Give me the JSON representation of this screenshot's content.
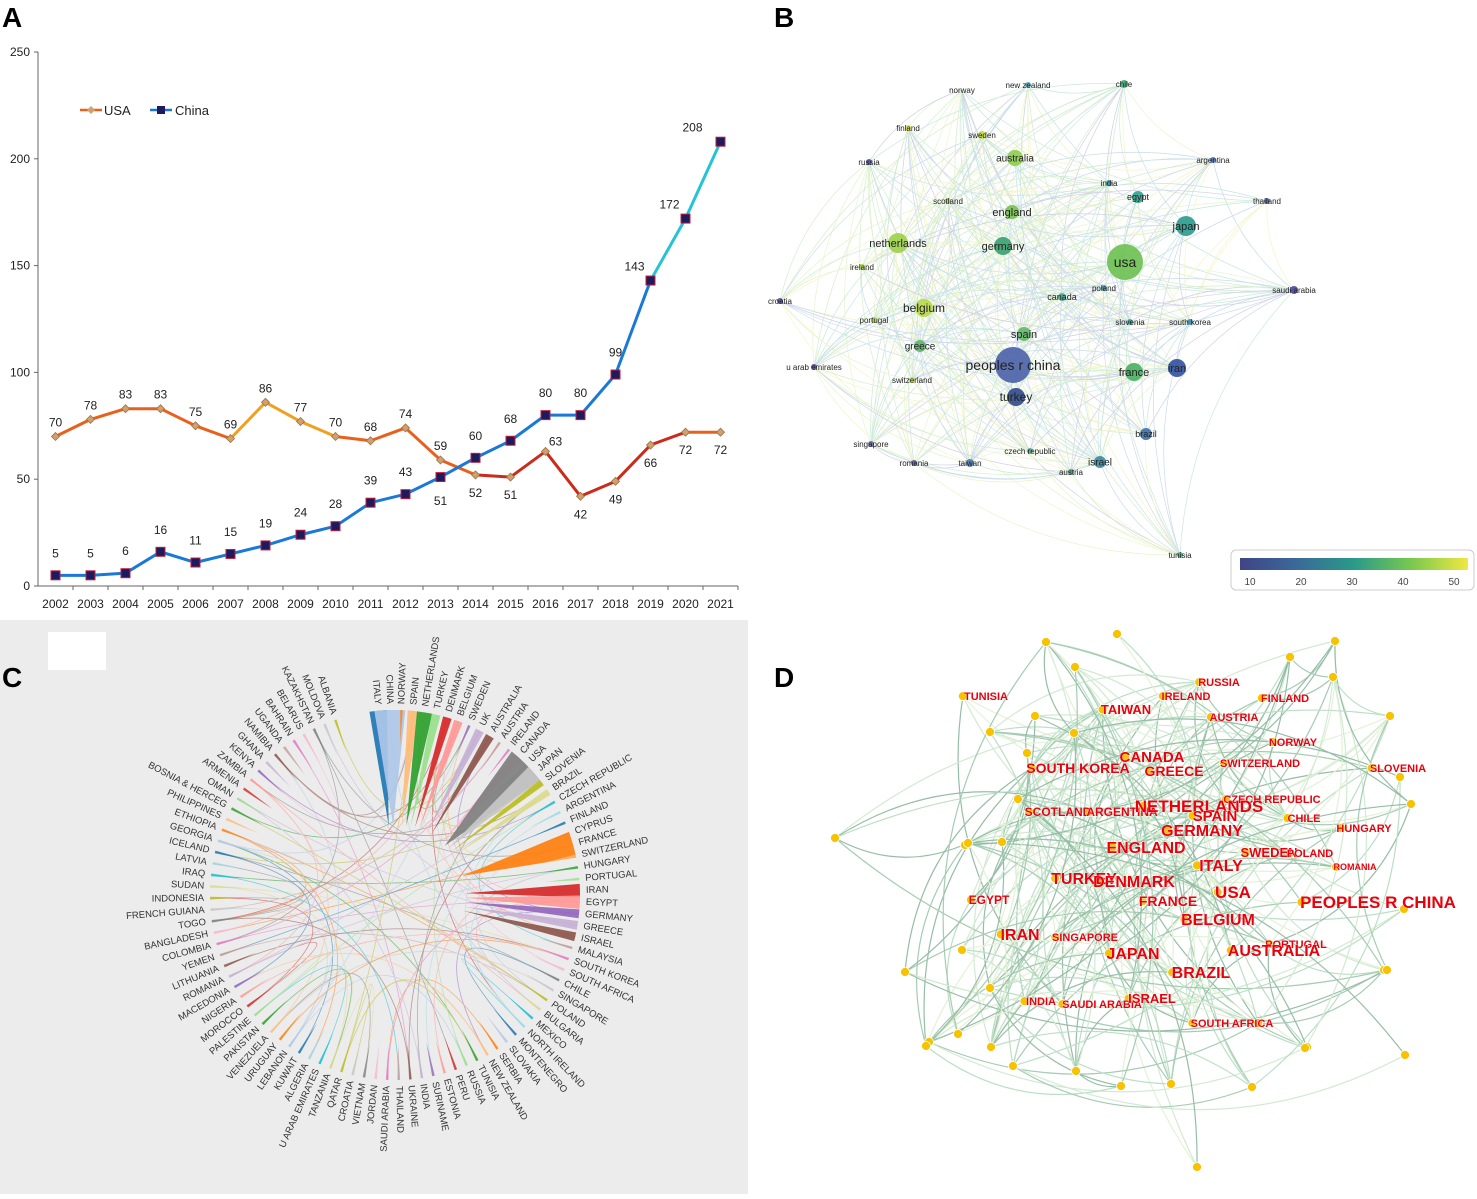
{
  "panels": {
    "a": "A",
    "b": "B",
    "c": "C",
    "d": "D"
  },
  "chart_data": [
    {
      "type": "line",
      "panel": "A",
      "title": "",
      "x": [
        2002,
        2003,
        2004,
        2005,
        2006,
        2007,
        2008,
        2009,
        2010,
        2011,
        2012,
        2013,
        2014,
        2015,
        2016,
        2017,
        2018,
        2019,
        2020,
        2021
      ],
      "series": [
        {
          "name": "USA",
          "values": [
            70,
            78,
            83,
            83,
            75,
            69,
            86,
            77,
            70,
            68,
            74,
            59,
            52,
            51,
            63,
            42,
            49,
            66,
            72,
            72
          ]
        },
        {
          "name": "China",
          "values": [
            5,
            5,
            6,
            16,
            11,
            15,
            19,
            24,
            28,
            39,
            43,
            51,
            60,
            68,
            80,
            80,
            99,
            143,
            172,
            208
          ]
        }
      ],
      "ylim": [
        0,
        250
      ],
      "yticks": [
        0,
        50,
        100,
        150,
        200,
        250
      ],
      "legend": "top-left"
    },
    {
      "type": "network",
      "panel": "B",
      "nodes": [
        "norway",
        "new zealand",
        "chile",
        "finland",
        "sweden",
        "australia",
        "russia",
        "argentina",
        "india",
        "egypt",
        "scotland",
        "thailand",
        "england",
        "japan",
        "netherlands",
        "germany",
        "usa",
        "ireland",
        "poland",
        "croatia",
        "canada",
        "saudi arabia",
        "belgium",
        "portugal",
        "slovenia",
        "south korea",
        "spain",
        "greece",
        "peoples r china",
        "u arab emirates",
        "france",
        "iran",
        "switzerland",
        "turkey",
        "brazil",
        "singapore",
        "czech republic",
        "romania",
        "taiwan",
        "israel",
        "austria",
        "tunisia"
      ],
      "colorbar": {
        "ticks": [
          "10",
          "20",
          "30",
          "40",
          "50"
        ]
      }
    },
    {
      "type": "chord",
      "panel": "C",
      "labels": [
        "ITALY",
        "CHINA",
        "NORWAY",
        "SPAIN",
        "NETHERLANDS",
        "TURKEY",
        "DENMARK",
        "BELGIUM",
        "SWEDEN",
        "UK",
        "AUSTRALIA",
        "AUSTRIA",
        "IRELAND",
        "CANADA",
        "USA",
        "JAPAN",
        "SLOVENIA",
        "BRAZIL",
        "CZECH REPUBLIC",
        "ARGENTINA",
        "FINLAND",
        "CYPRUS",
        "FRANCE",
        "SWITZERLAND",
        "HUNGARY",
        "PORTUGAL",
        "IRAN",
        "EGYPT",
        "GERMANY",
        "GREECE",
        "ISRAEL",
        "MALAYSIA",
        "SOUTH KOREA",
        "SOUTH AFRICA",
        "CHILE",
        "SINGAPORE",
        "POLAND",
        "BULGARIA",
        "MEXICO",
        "NORTH IRELAND",
        "MONTENEGRO",
        "SLOVAKIA",
        "SERBIA",
        "NEW ZEALAND",
        "TUNISIA",
        "RUSSIA",
        "PERU",
        "ESTONIA",
        "SURINAME",
        "INDIA",
        "UKRAINE",
        "THAILAND",
        "SAUDI ARABIA",
        "JORDAN",
        "VIETNAM",
        "CROATIA",
        "QATAR",
        "TANZANIA",
        "U ARAB EMIRATES",
        "ALGERIA",
        "KUWAIT",
        "LEBANON",
        "URUGUAY",
        "VENEZUELA",
        "PAKISTAN",
        "PALESTINE",
        "MOROCCO",
        "NIGERIA",
        "MACEDONIA",
        "ROMANIA",
        "LITHUANIA",
        "YEMEN",
        "COLOMBIA",
        "BANGLADESH",
        "TOGO",
        "FRENCH GUIANA",
        "INDONESIA",
        "SUDAN",
        "IRAQ",
        "LATVIA",
        "ICELAND",
        "GEORGIA",
        "ETHIOPIA",
        "PHILIPPINES",
        "BOSNIA & HERCEG",
        "OMAN",
        "ARMENIA",
        "ZAMBIA",
        "KENYA",
        "GHANA",
        "NAMIBIA",
        "UGANDA",
        "BAHRAIN",
        "BELARUS",
        "KAZAKHSTAN",
        "MOLDOVA",
        "ALBANIA"
      ]
    },
    {
      "type": "network",
      "panel": "D",
      "labels": [
        "TUNISIA",
        "IRELAND",
        "RUSSIA",
        "FINLAND",
        "TAIWAN",
        "AUSTRIA",
        "NORWAY",
        "CANADA",
        "SOUTH KOREA",
        "GREECE",
        "SWITZERLAND",
        "SLOVENIA",
        "CZECH REPUBLIC",
        "SCOTLAND",
        "ARGENTINA",
        "NETHERLANDS",
        "SPAIN",
        "CHILE",
        "HUNGARY",
        "GERMANY",
        "ENGLAND",
        "SWEDEN",
        "POLAND",
        "ITALY",
        "ROMANIA",
        "TURKEY",
        "DENMARK",
        "USA",
        "EGYPT",
        "FRANCE",
        "PEOPLES R CHINA",
        "BELGIUM",
        "IRAN",
        "SINGAPORE",
        "PORTUGAL",
        "JAPAN",
        "AUSTRALIA",
        "BRAZIL",
        "INDIA",
        "SAUDI ARABIA",
        "ISRAEL",
        "SOUTH AFRICA"
      ]
    }
  ]
}
